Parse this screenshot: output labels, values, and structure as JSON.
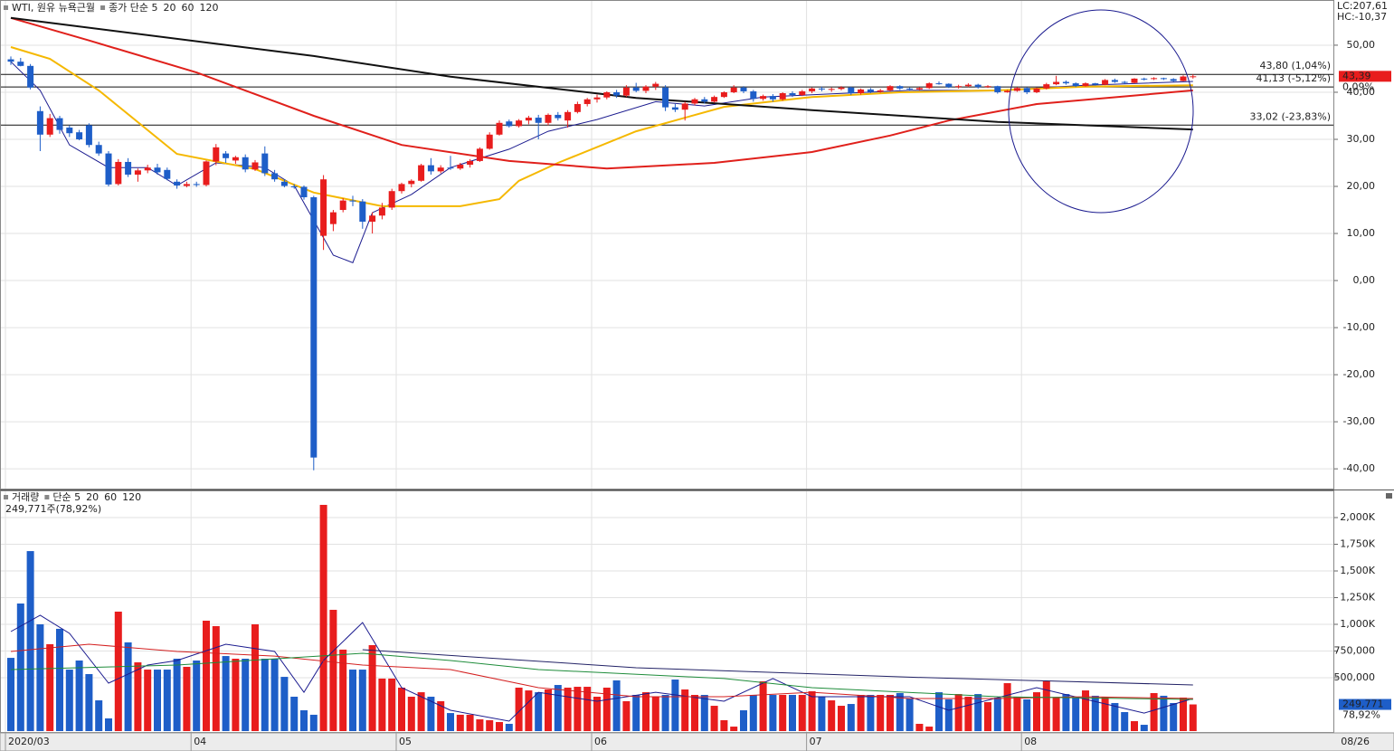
{
  "chart_data": [
    {
      "type": "candlestick",
      "title": "WTI, 원유 뉴욕근월",
      "up_color": "#e81d1d",
      "down_color": "#1e5ec8",
      "open": [
        47.0,
        46.5,
        45.6,
        36.0,
        31.0,
        34.5,
        32.5,
        31.5,
        33.0,
        28.8,
        27.0,
        20.5,
        25.2,
        22.5,
        23.4,
        24.0,
        23.5,
        21.0,
        20.1,
        20.5,
        20.3,
        25.3,
        27.0,
        25.5,
        26.2,
        23.6,
        27.0,
        22.8,
        21.0,
        20.0,
        19.9,
        17.7,
        9.5,
        12.0,
        15.0,
        17.0,
        16.8,
        12.5,
        13.8,
        15.5,
        19.0,
        20.5,
        21.2,
        24.5,
        23.2,
        24.0,
        23.8,
        24.6,
        25.4,
        28.0,
        31.0,
        33.8,
        32.8,
        34.0,
        34.6,
        33.5,
        35.2,
        34.0,
        35.8,
        37.5,
        38.5,
        38.9,
        40.0,
        39.3,
        41.0,
        40.3,
        41.2,
        41.0,
        36.8,
        36.3,
        37.6,
        38.5,
        38.0,
        39.0,
        40.0,
        41.0,
        40.2,
        38.6,
        39.2,
        38.5,
        39.8,
        39.4,
        40.2,
        40.8,
        40.6,
        40.7,
        41.0,
        39.8,
        40.6,
        40.1,
        40.4,
        41.3,
        40.8,
        40.6,
        40.9,
        41.9,
        41.8,
        41.1,
        41.3,
        41.6,
        41.1,
        41.3,
        40.0,
        40.3,
        40.9,
        40.0,
        40.8,
        41.7,
        42.2,
        41.9,
        41.3,
        41.9,
        41.6,
        42.6,
        42.2,
        42.0,
        42.9,
        42.8,
        43.0,
        42.8,
        42.4,
        43.35
      ],
      "high": [
        47.6,
        47.3,
        46.0,
        37.0,
        35.4,
        35.0,
        33.0,
        32.0,
        33.4,
        29.5,
        27.5,
        25.8,
        26.0,
        23.8,
        24.6,
        24.8,
        24.0,
        21.5,
        21.0,
        21.0,
        25.5,
        29.0,
        27.5,
        26.5,
        26.8,
        25.6,
        28.5,
        23.5,
        21.5,
        20.5,
        20.2,
        18.0,
        22.4,
        15.0,
        17.5,
        18.0,
        17.3,
        14.5,
        16.5,
        19.5,
        20.8,
        21.5,
        24.8,
        26.0,
        24.5,
        26.5,
        25.0,
        25.8,
        28.3,
        31.5,
        34.0,
        34.2,
        34.3,
        35.0,
        35.2,
        35.5,
        35.8,
        36.2,
        38.0,
        38.8,
        39.5,
        40.2,
        40.5,
        41.5,
        42.0,
        41.5,
        42.2,
        41.5,
        37.5,
        38.0,
        38.8,
        39.0,
        39.3,
        40.2,
        41.5,
        41.3,
        40.5,
        39.5,
        39.6,
        40.0,
        40.2,
        40.5,
        41.0,
        41.2,
        41.0,
        41.3,
        41.2,
        40.8,
        40.9,
        40.7,
        41.5,
        41.5,
        41.0,
        41.1,
        42.1,
        42.3,
        41.9,
        41.6,
        41.9,
        41.8,
        41.5,
        41.4,
        40.5,
        41.1,
        41.1,
        41.0,
        42.0,
        43.5,
        42.5,
        42.1,
        42.1,
        42.0,
        42.8,
        42.9,
        42.4,
        43.0,
        43.1,
        43.2,
        43.1,
        43.0,
        43.6,
        43.8
      ],
      "low": [
        45.8,
        45.5,
        40.6,
        27.5,
        30.5,
        31.2,
        30.5,
        29.8,
        28.3,
        26.5,
        20.0,
        20.2,
        22.0,
        21.0,
        22.8,
        22.5,
        21.3,
        19.5,
        19.8,
        19.9,
        20.0,
        24.5,
        25.0,
        24.8,
        23.0,
        23.3,
        22.2,
        21.0,
        19.8,
        19.5,
        17.2,
        -40.3,
        6.5,
        10.5,
        14.5,
        15.8,
        11.0,
        10.0,
        13.0,
        15.0,
        18.5,
        19.8,
        21.0,
        22.5,
        22.8,
        23.5,
        23.5,
        24.0,
        25.2,
        27.8,
        30.8,
        32.5,
        32.5,
        33.2,
        30.0,
        33.0,
        34.0,
        32.5,
        35.5,
        37.0,
        37.8,
        38.5,
        38.8,
        39.0,
        40.0,
        39.8,
        40.5,
        36.0,
        35.8,
        34.0,
        37.2,
        37.6,
        37.8,
        38.8,
        39.8,
        39.8,
        38.0,
        38.2,
        38.0,
        38.2,
        39.0,
        39.2,
        39.8,
        40.2,
        40.1,
        40.4,
        39.4,
        39.5,
        39.8,
        39.9,
        40.2,
        40.5,
        40.3,
        40.4,
        40.7,
        41.6,
        40.9,
        40.8,
        41.1,
        40.8,
        40.9,
        39.7,
        39.9,
        40.1,
        39.6,
        39.8,
        40.6,
        41.5,
        41.6,
        41.1,
        41.2,
        41.4,
        41.5,
        42.0,
        41.8,
        41.9,
        42.5,
        42.6,
        42.6,
        42.2,
        42.3,
        42.9
      ],
      "close": [
        46.5,
        45.6,
        41.0,
        31.0,
        34.5,
        32.0,
        31.3,
        30.0,
        28.8,
        27.0,
        20.4,
        25.2,
        22.5,
        23.4,
        24.0,
        23.0,
        21.6,
        20.2,
        20.5,
        20.3,
        25.3,
        28.3,
        26.0,
        26.2,
        23.6,
        25.1,
        22.8,
        21.5,
        20.1,
        19.9,
        17.7,
        -37.6,
        21.5,
        14.5,
        17.0,
        16.8,
        12.5,
        13.8,
        15.5,
        19.0,
        20.5,
        21.2,
        24.5,
        23.2,
        24.0,
        23.8,
        24.6,
        25.4,
        28.0,
        31.0,
        33.5,
        32.8,
        34.0,
        34.6,
        33.5,
        35.2,
        34.5,
        35.8,
        37.5,
        38.5,
        38.9,
        40.0,
        39.3,
        41.0,
        40.3,
        41.2,
        41.8,
        36.8,
        36.3,
        37.6,
        38.5,
        38.0,
        39.0,
        40.0,
        41.0,
        40.2,
        38.6,
        39.2,
        38.5,
        39.8,
        39.4,
        40.2,
        40.8,
        40.6,
        40.7,
        41.0,
        39.8,
        40.6,
        40.1,
        40.4,
        41.3,
        40.8,
        40.6,
        40.9,
        41.9,
        41.8,
        41.1,
        41.3,
        41.6,
        41.1,
        41.3,
        40.0,
        40.3,
        40.9,
        40.0,
        40.8,
        41.7,
        42.2,
        41.9,
        41.3,
        41.9,
        41.6,
        42.6,
        42.2,
        42.0,
        42.9,
        42.8,
        43.0,
        42.8,
        42.4,
        43.35,
        43.39
      ],
      "series": [
        {
          "name": "종가 단순 5",
          "color": "#1b1b8f",
          "x": [
            0,
            3,
            6,
            10,
            14,
            17,
            21,
            26,
            29,
            33,
            35,
            37,
            41,
            45,
            51,
            55,
            60,
            66,
            71,
            77,
            92,
            101,
            110,
            121
          ],
          "values": [
            46.5,
            40.4,
            28.8,
            24,
            24,
            20.2,
            25,
            24,
            20.2,
            5.4,
            3.8,
            14.4,
            18.3,
            24,
            27.9,
            31.7,
            34.2,
            38,
            37.1,
            39,
            40.4,
            40.4,
            41.5,
            42.3
          ]
        },
        {
          "name": "20",
          "color": "#f5b800",
          "x": [
            0,
            4,
            9,
            17,
            25,
            31,
            38,
            46,
            50,
            52,
            56,
            64,
            73,
            82,
            91,
            101,
            110,
            121
          ],
          "values": [
            49.6,
            47.1,
            40.4,
            26.9,
            23.7,
            18.7,
            15.8,
            15.8,
            17.3,
            21.2,
            25,
            31.7,
            36.9,
            39,
            40,
            40.4,
            41.2,
            41.5
          ]
        },
        {
          "name": "60",
          "color": "#e0201b",
          "x": [
            0,
            8,
            19,
            31,
            40,
            51,
            61,
            72,
            82,
            90,
            96,
            105,
            121
          ],
          "values": [
            55.8,
            51,
            44.2,
            35,
            28.8,
            25.4,
            23.8,
            25,
            27.3,
            30.8,
            34,
            37.5,
            40.4
          ]
        },
        {
          "name": "120",
          "color": "#111111",
          "x": [
            0,
            31,
            45,
            64,
            82,
            101,
            121
          ],
          "values": [
            55.8,
            47.7,
            43.3,
            38.8,
            36.2,
            33.7,
            32.1
          ]
        }
      ],
      "levels": [
        {
          "value": 43.8,
          "label": "43,80 (1,04%)"
        },
        {
          "value": 41.13,
          "label": "41,13 (-5,12%)"
        },
        {
          "value": 33.02,
          "label": "33,02 (-23,83%)"
        }
      ],
      "last_price": {
        "value": 43.39,
        "label": "43,39"
      },
      "last_change": "0,09%",
      "lc": "LC:207,61",
      "hc": "HC:-10,37",
      "ylim": [
        -44.2,
        59.6
      ],
      "yticks": [
        {
          "value": 50,
          "label": "50,00"
        },
        {
          "value": 40,
          "label": "40,00"
        },
        {
          "value": 30,
          "label": "30,00"
        },
        {
          "value": 20,
          "label": "20,00"
        },
        {
          "value": 10,
          "label": "10,00"
        },
        {
          "value": 0,
          "label": "0,00"
        },
        {
          "value": -10,
          "label": "-10,00"
        },
        {
          "value": -20,
          "label": "-20,00"
        },
        {
          "value": -30,
          "label": "-30,00"
        },
        {
          "value": -40,
          "label": "-40,00"
        }
      ],
      "grid": true
    },
    {
      "type": "bar",
      "title": "거래량",
      "title_color": "#1f8f8f",
      "categories": [
        "2020/03",
        null,
        null,
        null,
        null,
        null,
        null,
        null,
        null,
        null,
        null,
        null,
        null,
        null,
        null,
        null,
        null,
        null,
        null,
        "04",
        null,
        null,
        null,
        null,
        null,
        null,
        null,
        null,
        null,
        null,
        null,
        null,
        null,
        null,
        null,
        null,
        null,
        null,
        null,
        null,
        "05",
        null,
        null,
        null,
        null,
        null,
        null,
        null,
        null,
        null,
        null,
        null,
        null,
        null,
        null,
        null,
        null,
        null,
        null,
        null,
        "06",
        null,
        null,
        null,
        null,
        null,
        null,
        null,
        null,
        null,
        null,
        null,
        null,
        null,
        null,
        null,
        null,
        null,
        null,
        null,
        null,
        null,
        "07",
        null,
        null,
        null,
        null,
        null,
        null,
        null,
        null,
        null,
        null,
        null,
        null,
        null,
        null,
        null,
        null,
        null,
        null,
        null,
        null,
        null,
        "08",
        null,
        null,
        null,
        null,
        null,
        null,
        null,
        null,
        null,
        null,
        null,
        null,
        null,
        null,
        null,
        null,
        null
      ],
      "last_date": "08/26",
      "values": [
        686,
        1195,
        1686,
        1000,
        814,
        958,
        576,
        661,
        534,
        288,
        119,
        1119,
        831,
        644,
        576,
        576,
        576,
        678,
        602,
        661,
        1034,
        983,
        703,
        678,
        678,
        1000,
        678,
        678,
        508,
        322,
        195,
        153,
        2119,
        1136,
        763,
        576,
        576,
        805,
        492,
        492,
        407,
        322,
        364,
        322,
        280,
        169,
        153,
        153,
        110,
        102,
        85,
        68,
        407,
        381,
        364,
        390,
        432,
        407,
        415,
        415,
        322,
        407,
        475,
        280,
        339,
        364,
        322,
        339,
        483,
        390,
        339,
        339,
        237,
        102,
        42,
        195,
        339,
        466,
        339,
        339,
        339,
        339,
        373,
        322,
        288,
        237,
        254,
        339,
        339,
        339,
        339,
        356,
        305,
        68,
        42,
        364,
        297,
        347,
        322,
        347,
        271,
        314,
        449,
        322,
        297,
        364,
        466,
        314,
        347,
        314,
        381,
        331,
        322,
        263,
        178,
        93,
        59,
        356,
        331,
        263,
        314,
        249.771
      ],
      "series": [
        {
          "name": "단순 5",
          "color": "#1b1b8f",
          "x": [
            0,
            3,
            6,
            10,
            14,
            17,
            22,
            27,
            30,
            32,
            36,
            40,
            45,
            51,
            54,
            60,
            66,
            73,
            78,
            82,
            92,
            96,
            105,
            116,
            121
          ],
          "values": [
            932,
            1085,
            915,
            449,
            619,
            661,
            814,
            746,
            364,
            661,
            1017,
            407,
            195,
            93,
            364,
            280,
            364,
            280,
            492,
            322,
            322,
            195,
            407,
            169,
            305
          ]
        },
        {
          "name": "20",
          "color": "#d42020",
          "x": [
            0,
            8,
            17,
            27,
            36,
            45,
            54,
            64,
            73,
            82,
            92,
            101,
            110,
            121
          ],
          "values": [
            746,
            814,
            746,
            703,
            619,
            576,
            407,
            322,
            322,
            364,
            305,
            305,
            322,
            305
          ]
        },
        {
          "name": "60",
          "color": "#1e8c3a",
          "x": [
            0,
            17,
            36,
            45,
            54,
            73,
            82,
            101,
            121
          ],
          "values": [
            576,
            619,
            729,
            661,
            576,
            492,
            407,
            322,
            297
          ]
        },
        {
          "name": "120",
          "color": "#222266",
          "x": [
            36,
            64,
            92,
            121
          ],
          "values": [
            763,
            593,
            505,
            432
          ]
        }
      ],
      "readout": "249,771주(78,92%)",
      "last_value": {
        "value": 249.771,
        "label": "249,771"
      },
      "last_pct": "78,92%",
      "ylim": [
        0,
        2229
      ],
      "yticks": [
        {
          "value": 2000,
          "label": "2,000K"
        },
        {
          "value": 1750,
          "label": "1,750K"
        },
        {
          "value": 1500,
          "label": "1,500K"
        },
        {
          "value": 1250,
          "label": "1,250K"
        },
        {
          "value": 1000,
          "label": "1,000K"
        },
        {
          "value": 750,
          "label": "750,000"
        },
        {
          "value": 500,
          "label": "500,000"
        }
      ],
      "grid": true
    }
  ]
}
